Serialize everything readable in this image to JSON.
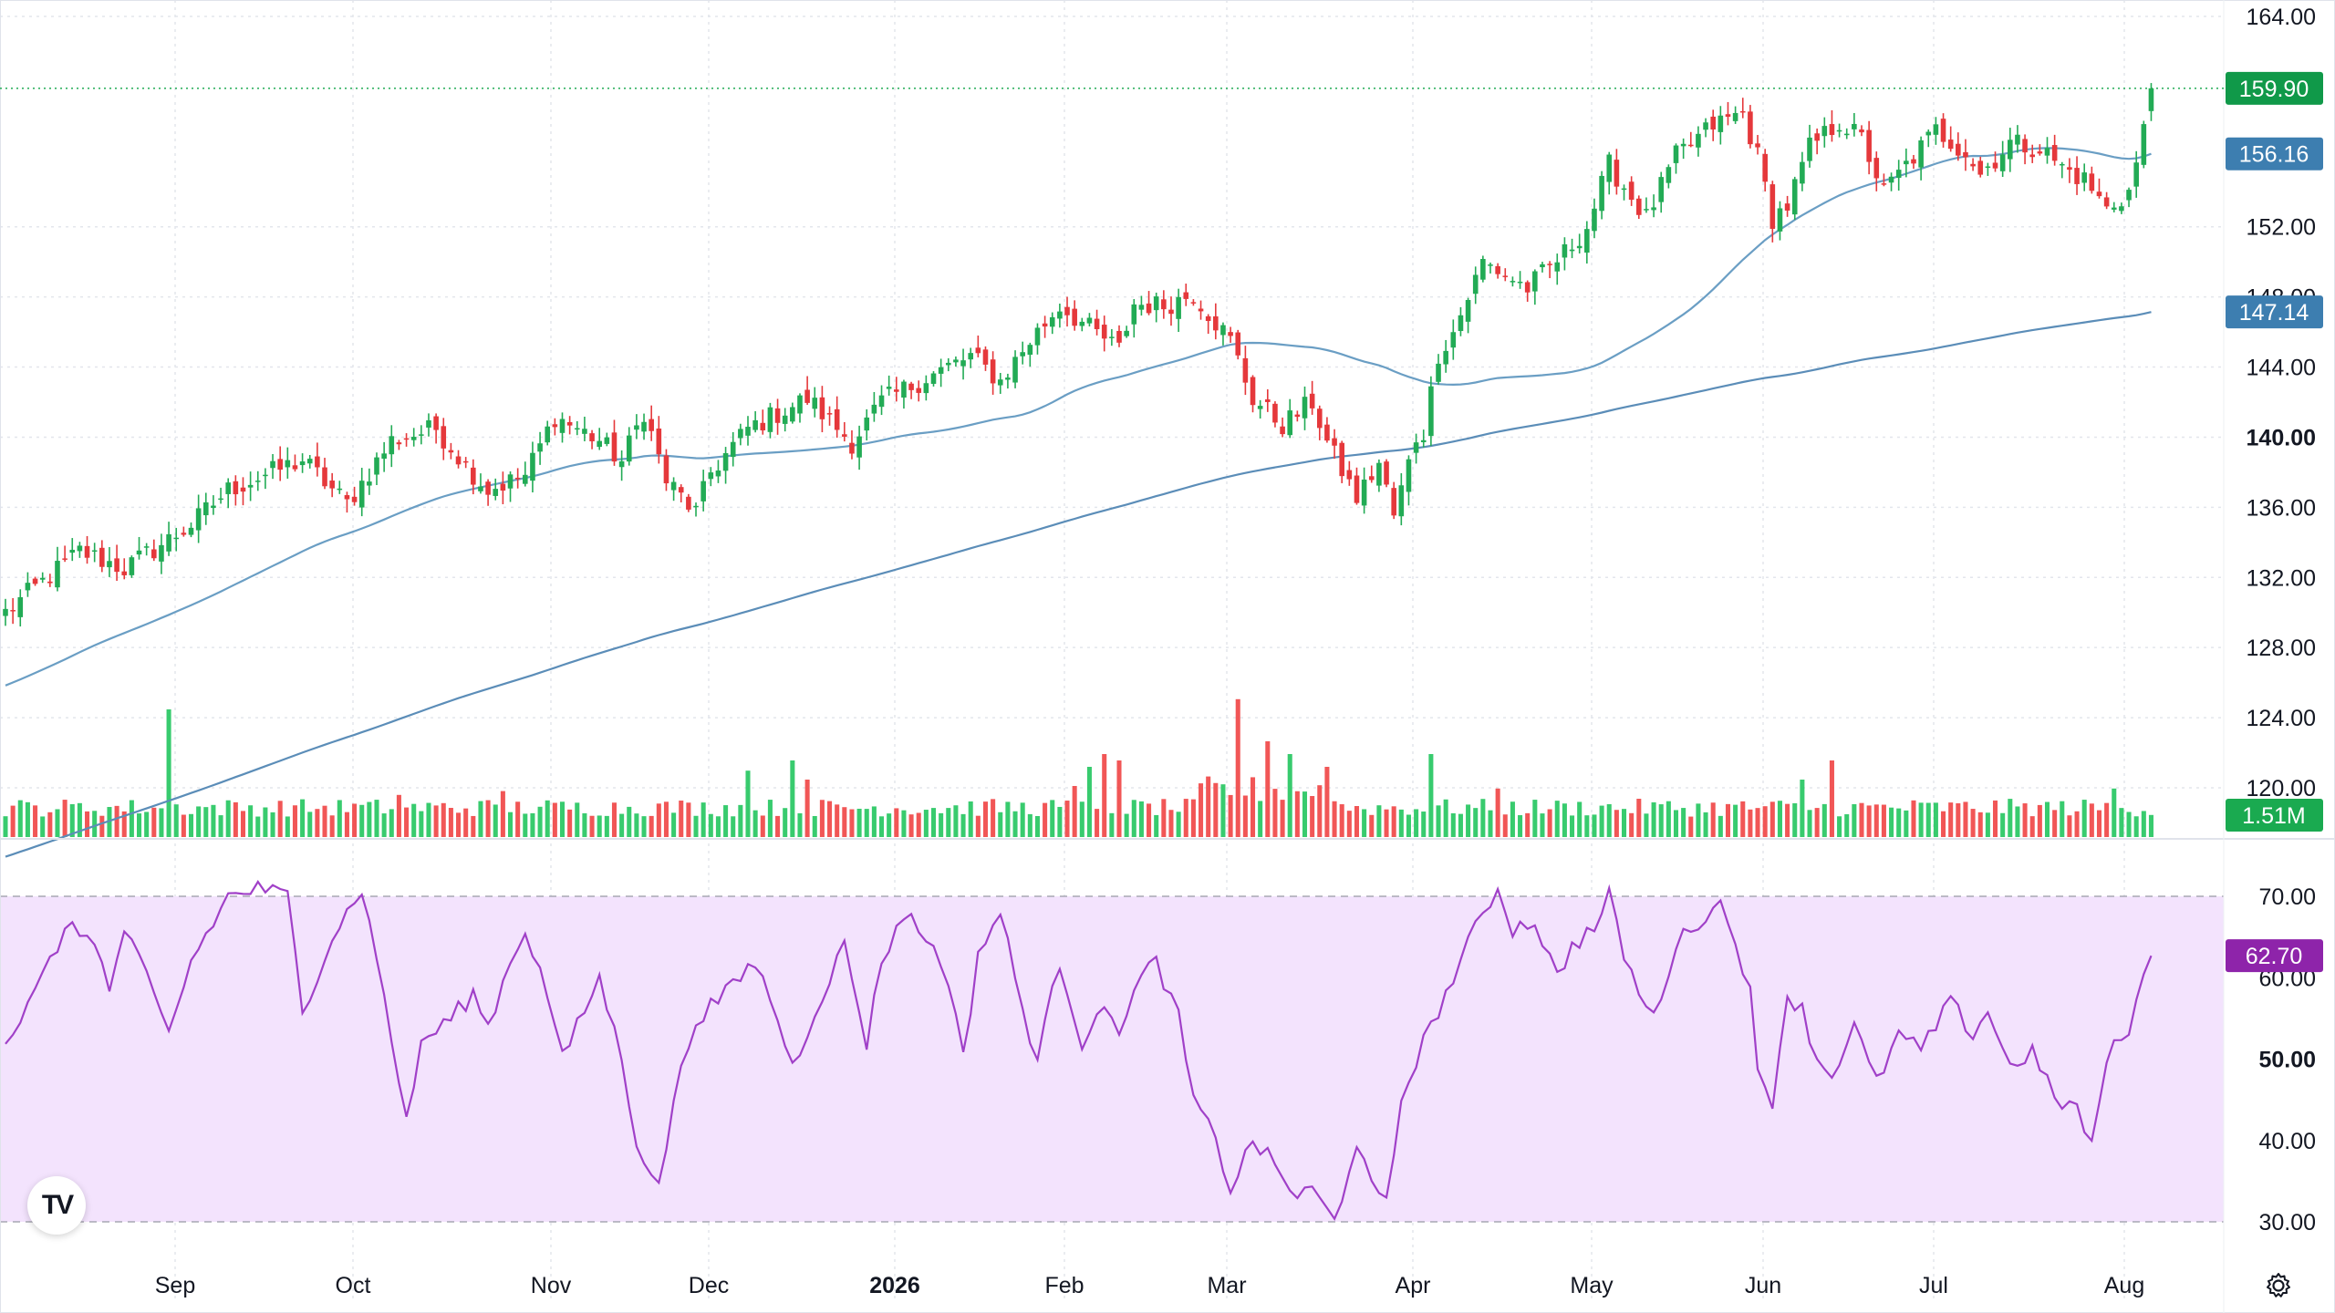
{
  "chart_data": {
    "type": "candlestick",
    "price_axis": {
      "ticks": [
        {
          "value": 164,
          "label": "164.00",
          "bold": false
        },
        {
          "value": 152,
          "label": "152.00",
          "bold": false
        },
        {
          "value": 148,
          "label": "148.00",
          "bold": false
        },
        {
          "value": 144,
          "label": "144.00",
          "bold": false
        },
        {
          "value": 140,
          "label": "140.00",
          "bold": true
        },
        {
          "value": 136,
          "label": "136.00",
          "bold": false
        },
        {
          "value": 132,
          "label": "132.00",
          "bold": false
        },
        {
          "value": 128,
          "label": "128.00",
          "bold": false
        },
        {
          "value": 124,
          "label": "124.00",
          "bold": false
        },
        {
          "value": 120,
          "label": "120.00",
          "bold": false
        }
      ],
      "range": [
        118,
        164
      ]
    },
    "rsi_axis": {
      "ticks": [
        {
          "value": 70,
          "label": "70.00",
          "bold": false
        },
        {
          "value": 60,
          "label": "60.00",
          "bold": false
        },
        {
          "value": 50,
          "label": "50.00",
          "bold": true
        },
        {
          "value": 40,
          "label": "40.00",
          "bold": false
        },
        {
          "value": 30,
          "label": "30.00",
          "bold": false
        }
      ],
      "upper_band": 70,
      "lower_band": 30
    },
    "time_axis": [
      {
        "label": "Sep",
        "bold": false
      },
      {
        "label": "Oct",
        "bold": false
      },
      {
        "label": "Nov",
        "bold": false
      },
      {
        "label": "Dec",
        "bold": false
      },
      {
        "label": "2026",
        "bold": true
      },
      {
        "label": "Feb",
        "bold": false
      },
      {
        "label": "Mar",
        "bold": false
      },
      {
        "label": "Apr",
        "bold": false
      },
      {
        "label": "May",
        "bold": false
      },
      {
        "label": "Jun",
        "bold": false
      },
      {
        "label": "Jul",
        "bold": false
      },
      {
        "label": "Aug",
        "bold": false
      }
    ],
    "last_price": {
      "value": 159.9,
      "label": "159.90"
    },
    "ma_short_last": {
      "value": 156.16,
      "label": "156.16"
    },
    "ma_long_last": {
      "value": 147.14,
      "label": "147.14"
    },
    "volume_last": {
      "label": "1.51M"
    },
    "rsi_last": {
      "value": 62.7,
      "label": "62.70"
    },
    "close_anchors": [
      [
        0,
        130.0
      ],
      [
        10,
        133.5
      ],
      [
        16,
        132.5
      ],
      [
        20,
        133.6
      ],
      [
        25,
        135.0
      ],
      [
        30,
        137.0
      ],
      [
        40,
        138.7
      ],
      [
        46,
        136.2
      ],
      [
        52,
        139.8
      ],
      [
        58,
        140.5
      ],
      [
        62,
        138.4
      ],
      [
        65,
        137.0
      ],
      [
        70,
        137.8
      ],
      [
        74,
        141.2
      ],
      [
        80,
        139.8
      ],
      [
        83,
        138.6
      ],
      [
        86,
        141.5
      ],
      [
        89,
        137.5
      ],
      [
        93,
        135.7
      ],
      [
        95,
        138.0
      ],
      [
        100,
        140.5
      ],
      [
        108,
        142.2
      ],
      [
        114,
        139.7
      ],
      [
        118,
        142.0
      ],
      [
        124,
        143.4
      ],
      [
        130,
        144.6
      ],
      [
        134,
        143.2
      ],
      [
        138,
        145.5
      ],
      [
        142,
        147.5
      ],
      [
        146,
        146.2
      ],
      [
        150,
        145.0
      ],
      [
        152,
        147.6
      ],
      [
        156,
        147.5
      ],
      [
        160,
        148.2
      ],
      [
        165,
        145.5
      ],
      [
        168,
        142.2
      ],
      [
        172,
        140.7
      ],
      [
        176,
        142.0
      ],
      [
        178,
        139.7
      ],
      [
        182,
        136.5
      ],
      [
        185,
        138.5
      ],
      [
        187,
        135.5
      ],
      [
        190,
        140.0
      ],
      [
        191,
        140.3
      ],
      [
        193,
        144.8
      ],
      [
        195,
        146.0
      ],
      [
        199,
        150.0
      ],
      [
        201,
        149.5
      ],
      [
        205,
        148.5
      ],
      [
        210,
        150.5
      ],
      [
        213,
        152.0
      ],
      [
        216,
        155.5
      ],
      [
        221,
        152.5
      ],
      [
        225,
        156.0
      ],
      [
        230,
        157.8
      ],
      [
        234,
        158.5
      ],
      [
        236,
        156.0
      ],
      [
        238,
        152.5
      ],
      [
        240,
        153.2
      ],
      [
        243,
        156.5
      ],
      [
        247,
        158.0
      ],
      [
        250,
        157.0
      ],
      [
        253,
        154.0
      ],
      [
        256,
        155.5
      ],
      [
        260,
        157.5
      ],
      [
        264,
        156.3
      ],
      [
        266,
        155.0
      ],
      [
        270,
        156.8
      ],
      [
        274,
        156.5
      ],
      [
        277,
        155.4
      ],
      [
        280,
        154.7
      ],
      [
        283,
        153.0
      ],
      [
        286,
        154.0
      ],
      [
        287,
        155.6
      ],
      [
        288,
        157.5
      ],
      [
        289,
        159.9
      ]
    ],
    "rsi_anchors": [
      [
        0,
        52
      ],
      [
        4,
        58
      ],
      [
        8,
        66
      ],
      [
        12,
        65
      ],
      [
        14,
        58
      ],
      [
        16,
        66
      ],
      [
        18,
        62
      ],
      [
        22,
        53
      ],
      [
        25,
        62
      ],
      [
        30,
        70
      ],
      [
        34,
        71
      ],
      [
        38,
        70
      ],
      [
        40,
        56
      ],
      [
        44,
        65
      ],
      [
        48,
        71
      ],
      [
        50,
        62
      ],
      [
        51,
        58
      ],
      [
        54,
        42
      ],
      [
        56,
        52
      ],
      [
        60,
        55
      ],
      [
        63,
        58
      ],
      [
        65,
        54
      ],
      [
        68,
        62
      ],
      [
        70,
        66
      ],
      [
        73,
        58
      ],
      [
        75,
        50
      ],
      [
        78,
        56
      ],
      [
        80,
        60
      ],
      [
        83,
        50
      ],
      [
        85,
        40
      ],
      [
        88,
        34
      ],
      [
        90,
        45
      ],
      [
        93,
        55
      ],
      [
        97,
        58
      ],
      [
        101,
        62
      ],
      [
        104,
        55
      ],
      [
        106,
        49
      ],
      [
        110,
        58
      ],
      [
        113,
        64
      ],
      [
        116,
        52
      ],
      [
        118,
        62
      ],
      [
        121,
        68
      ],
      [
        124,
        65
      ],
      [
        127,
        60
      ],
      [
        129,
        50
      ],
      [
        131,
        63
      ],
      [
        134,
        68
      ],
      [
        137,
        56
      ],
      [
        139,
        50
      ],
      [
        142,
        62
      ],
      [
        145,
        52
      ],
      [
        147,
        56
      ],
      [
        150,
        54
      ],
      [
        153,
        60
      ],
      [
        155,
        62
      ],
      [
        158,
        55
      ],
      [
        160,
        45
      ],
      [
        163,
        40
      ],
      [
        165,
        34
      ],
      [
        168,
        40
      ],
      [
        170,
        38
      ],
      [
        174,
        33
      ],
      [
        176,
        34
      ],
      [
        179,
        30
      ],
      [
        182,
        40
      ],
      [
        184,
        34
      ],
      [
        186,
        32
      ],
      [
        188,
        45
      ],
      [
        190,
        50
      ],
      [
        193,
        56
      ],
      [
        196,
        62
      ],
      [
        199,
        68
      ],
      [
        201,
        71
      ],
      [
        203,
        66
      ],
      [
        206,
        67
      ],
      [
        209,
        60
      ],
      [
        211,
        64
      ],
      [
        214,
        66
      ],
      [
        216,
        70
      ],
      [
        218,
        63
      ],
      [
        220,
        58
      ],
      [
        222,
        55
      ],
      [
        225,
        64
      ],
      [
        228,
        67
      ],
      [
        231,
        69
      ],
      [
        233,
        65
      ],
      [
        235,
        58
      ],
      [
        236,
        48
      ],
      [
        238,
        45
      ],
      [
        240,
        58
      ],
      [
        242,
        56
      ],
      [
        244,
        50
      ],
      [
        246,
        48
      ],
      [
        249,
        54
      ],
      [
        252,
        47
      ],
      [
        255,
        53
      ],
      [
        258,
        51
      ],
      [
        262,
        57
      ],
      [
        265,
        53
      ],
      [
        267,
        56
      ],
      [
        270,
        49
      ],
      [
        273,
        51
      ],
      [
        276,
        45
      ],
      [
        279,
        44
      ],
      [
        281,
        39
      ],
      [
        283,
        50
      ],
      [
        286,
        54
      ],
      [
        289,
        62.7
      ]
    ]
  }
}
